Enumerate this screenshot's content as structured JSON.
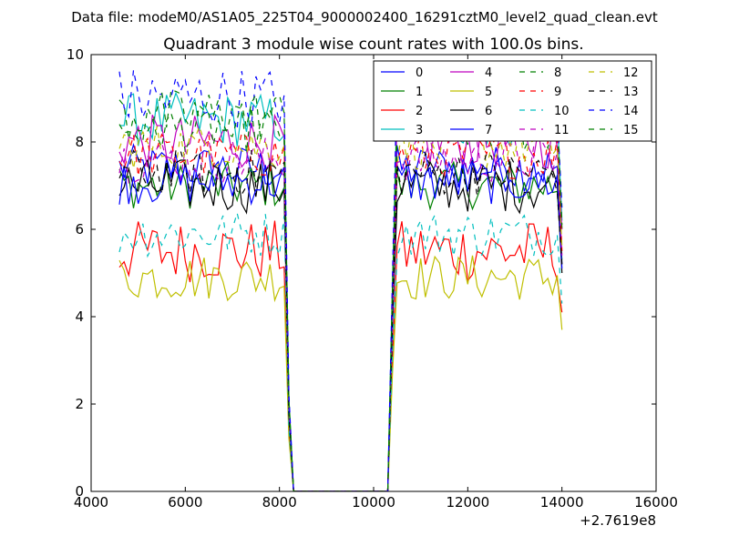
{
  "suptitle": "Data file: modeM0/AS1A05_225T04_9000002400_16291cztM0_level2_quad_clean.evt",
  "chart_data": {
    "type": "line",
    "title": "Quadrant 3 module wise count rates with 100.0s bins.",
    "xlabel": "",
    "ylabel": "",
    "x_offset_label": "+2.7619e8",
    "xlim": [
      4000,
      16000
    ],
    "ylim": [
      0,
      10
    ],
    "xticks": [
      "4000",
      "6000",
      "8000",
      "10000",
      "12000",
      "14000",
      "16000"
    ],
    "yticks": [
      "0",
      "2",
      "4",
      "6",
      "8",
      "10"
    ],
    "grid": false,
    "legend_position": "top-right",
    "legend_columns": 4,
    "x_start": 4600,
    "x_step": 100,
    "drop_start": 8100,
    "drop_end": 8300,
    "rise_start": 10300,
    "rise_end": 10500,
    "end_x": 14000,
    "series": [
      {
        "name": "0",
        "color": "#0000ff",
        "dash": "solid",
        "level": 7.4,
        "noise": 0.3,
        "end_value": 5.2
      },
      {
        "name": "1",
        "color": "#008000",
        "dash": "solid",
        "level": 7.0,
        "noise": 0.3,
        "end_value": 5.3
      },
      {
        "name": "2",
        "color": "#ff0000",
        "dash": "solid",
        "level": 5.5,
        "noise": 0.4,
        "end_value": 4.1
      },
      {
        "name": "3",
        "color": "#00bfbf",
        "dash": "solid",
        "level": 8.5,
        "noise": 0.35,
        "end_value": 6.2
      },
      {
        "name": "4",
        "color": "#bf00bf",
        "dash": "solid",
        "level": 8.0,
        "noise": 0.35,
        "end_value": 6.0
      },
      {
        "name": "5",
        "color": "#bfbf00",
        "dash": "solid",
        "level": 4.9,
        "noise": 0.3,
        "end_value": 3.7
      },
      {
        "name": "6",
        "color": "#000000",
        "dash": "solid",
        "level": 7.0,
        "noise": 0.35,
        "end_value": 5.0
      },
      {
        "name": "7",
        "color": "#0000ff",
        "dash": "solid",
        "level": 7.1,
        "noise": 0.3,
        "end_value": 5.1
      },
      {
        "name": "8",
        "color": "#008000",
        "dash": "dashed",
        "level": 8.3,
        "noise": 0.3,
        "end_value": 6.0
      },
      {
        "name": "9",
        "color": "#ff0000",
        "dash": "dashed",
        "level": 7.7,
        "noise": 0.3,
        "end_value": 5.5
      },
      {
        "name": "10",
        "color": "#00bfbf",
        "dash": "dashed",
        "level": 5.9,
        "noise": 0.3,
        "end_value": 4.3
      },
      {
        "name": "11",
        "color": "#bf00bf",
        "dash": "dashed",
        "level": 7.6,
        "noise": 0.3,
        "end_value": 5.4
      },
      {
        "name": "12",
        "color": "#bfbf00",
        "dash": "dashed",
        "level": 7.9,
        "noise": 0.3,
        "end_value": 5.6
      },
      {
        "name": "13",
        "color": "#000000",
        "dash": "dashed",
        "level": 7.3,
        "noise": 0.3,
        "end_value": 5.2
      },
      {
        "name": "14",
        "color": "#0000ff",
        "dash": "dashed",
        "level": 9.0,
        "noise": 0.4,
        "end_value": 6.5
      },
      {
        "name": "15",
        "color": "#008000",
        "dash": "dashed",
        "level": 8.6,
        "noise": 0.35,
        "end_value": 6.1
      }
    ]
  }
}
